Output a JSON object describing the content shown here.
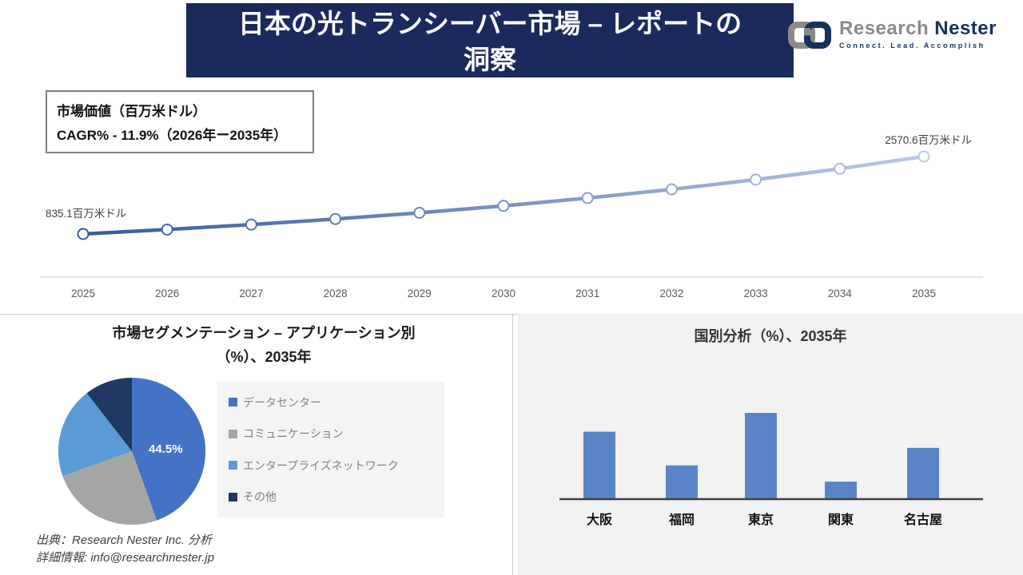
{
  "header": {
    "title_line1": "日本の光トランシーバー市場 – レポートの",
    "title_line2": "洞察",
    "banner_color": "#1B2A5C"
  },
  "logo": {
    "brand_gray": "Research",
    "brand_navy": "Nester",
    "tagline": "Connect. Lead. Accomplish"
  },
  "info_box": {
    "line1": "市場価値（百万米ドル）",
    "line2": "CAGR% - 11.9%（2026年ー2035年）"
  },
  "source": {
    "line1": "出典：Research Nester Inc. 分析",
    "line2": "詳細情報: info@researchnester.jp"
  },
  "chart_data": [
    {
      "id": "market-value-line",
      "type": "line",
      "x": [
        "2025",
        "2026",
        "2027",
        "2028",
        "2029",
        "2030",
        "2031",
        "2032",
        "2033",
        "2034",
        "2035"
      ],
      "values": [
        835.1,
        934.5,
        1045.7,
        1170.1,
        1309.3,
        1465.1,
        1639.5,
        1834.6,
        2052.9,
        2297.2,
        2570.6
      ],
      "values_note": "Only 2025 and 2035 carry data labels; intermediate values estimated from the 11.9% CAGR trend line",
      "first_point_label": "835.1百万米ドル",
      "last_point_label": "2570.6百万米ドル",
      "line_gradient_start": "#2E5597",
      "line_gradient_end": "#C7D0EC",
      "marker": "open-circle",
      "axis_color": "#D9D9D9",
      "tick_color": "#595959",
      "grid": "off",
      "legend": "none"
    },
    {
      "id": "application-segmentation-pie",
      "type": "pie",
      "title_line1": "市場セグメンテーション – アプリケーション別",
      "title_line2": "（%）、2035年",
      "labels": [
        "データセンター",
        "コミュニケーション",
        "エンタープライズネットワーク",
        "その他"
      ],
      "values": [
        44.5,
        25,
        20,
        10.5
      ],
      "values_note": "44.5% labeled on chart for データセンター; remaining slice values estimated from arc angles",
      "slice_label": "44.5%",
      "colors": [
        "#4472C4",
        "#A5A5A5",
        "#5B9BD5",
        "#1F3864"
      ],
      "legend_position": "right"
    },
    {
      "id": "country-analysis-bar",
      "type": "bar",
      "title": "国別分析（%）、2035年",
      "categories": [
        "大阪",
        "福岡",
        "東京",
        "関東",
        "名古屋"
      ],
      "values": [
        27,
        13.5,
        34.5,
        7,
        20.5
      ],
      "values_note": "No data labels shown; percentage values estimated from bar heights",
      "bar_color": "#5B84C8",
      "panel_color": "#F2F2F2",
      "axis_color": "#404040",
      "grid": "off",
      "legend": "none"
    }
  ]
}
